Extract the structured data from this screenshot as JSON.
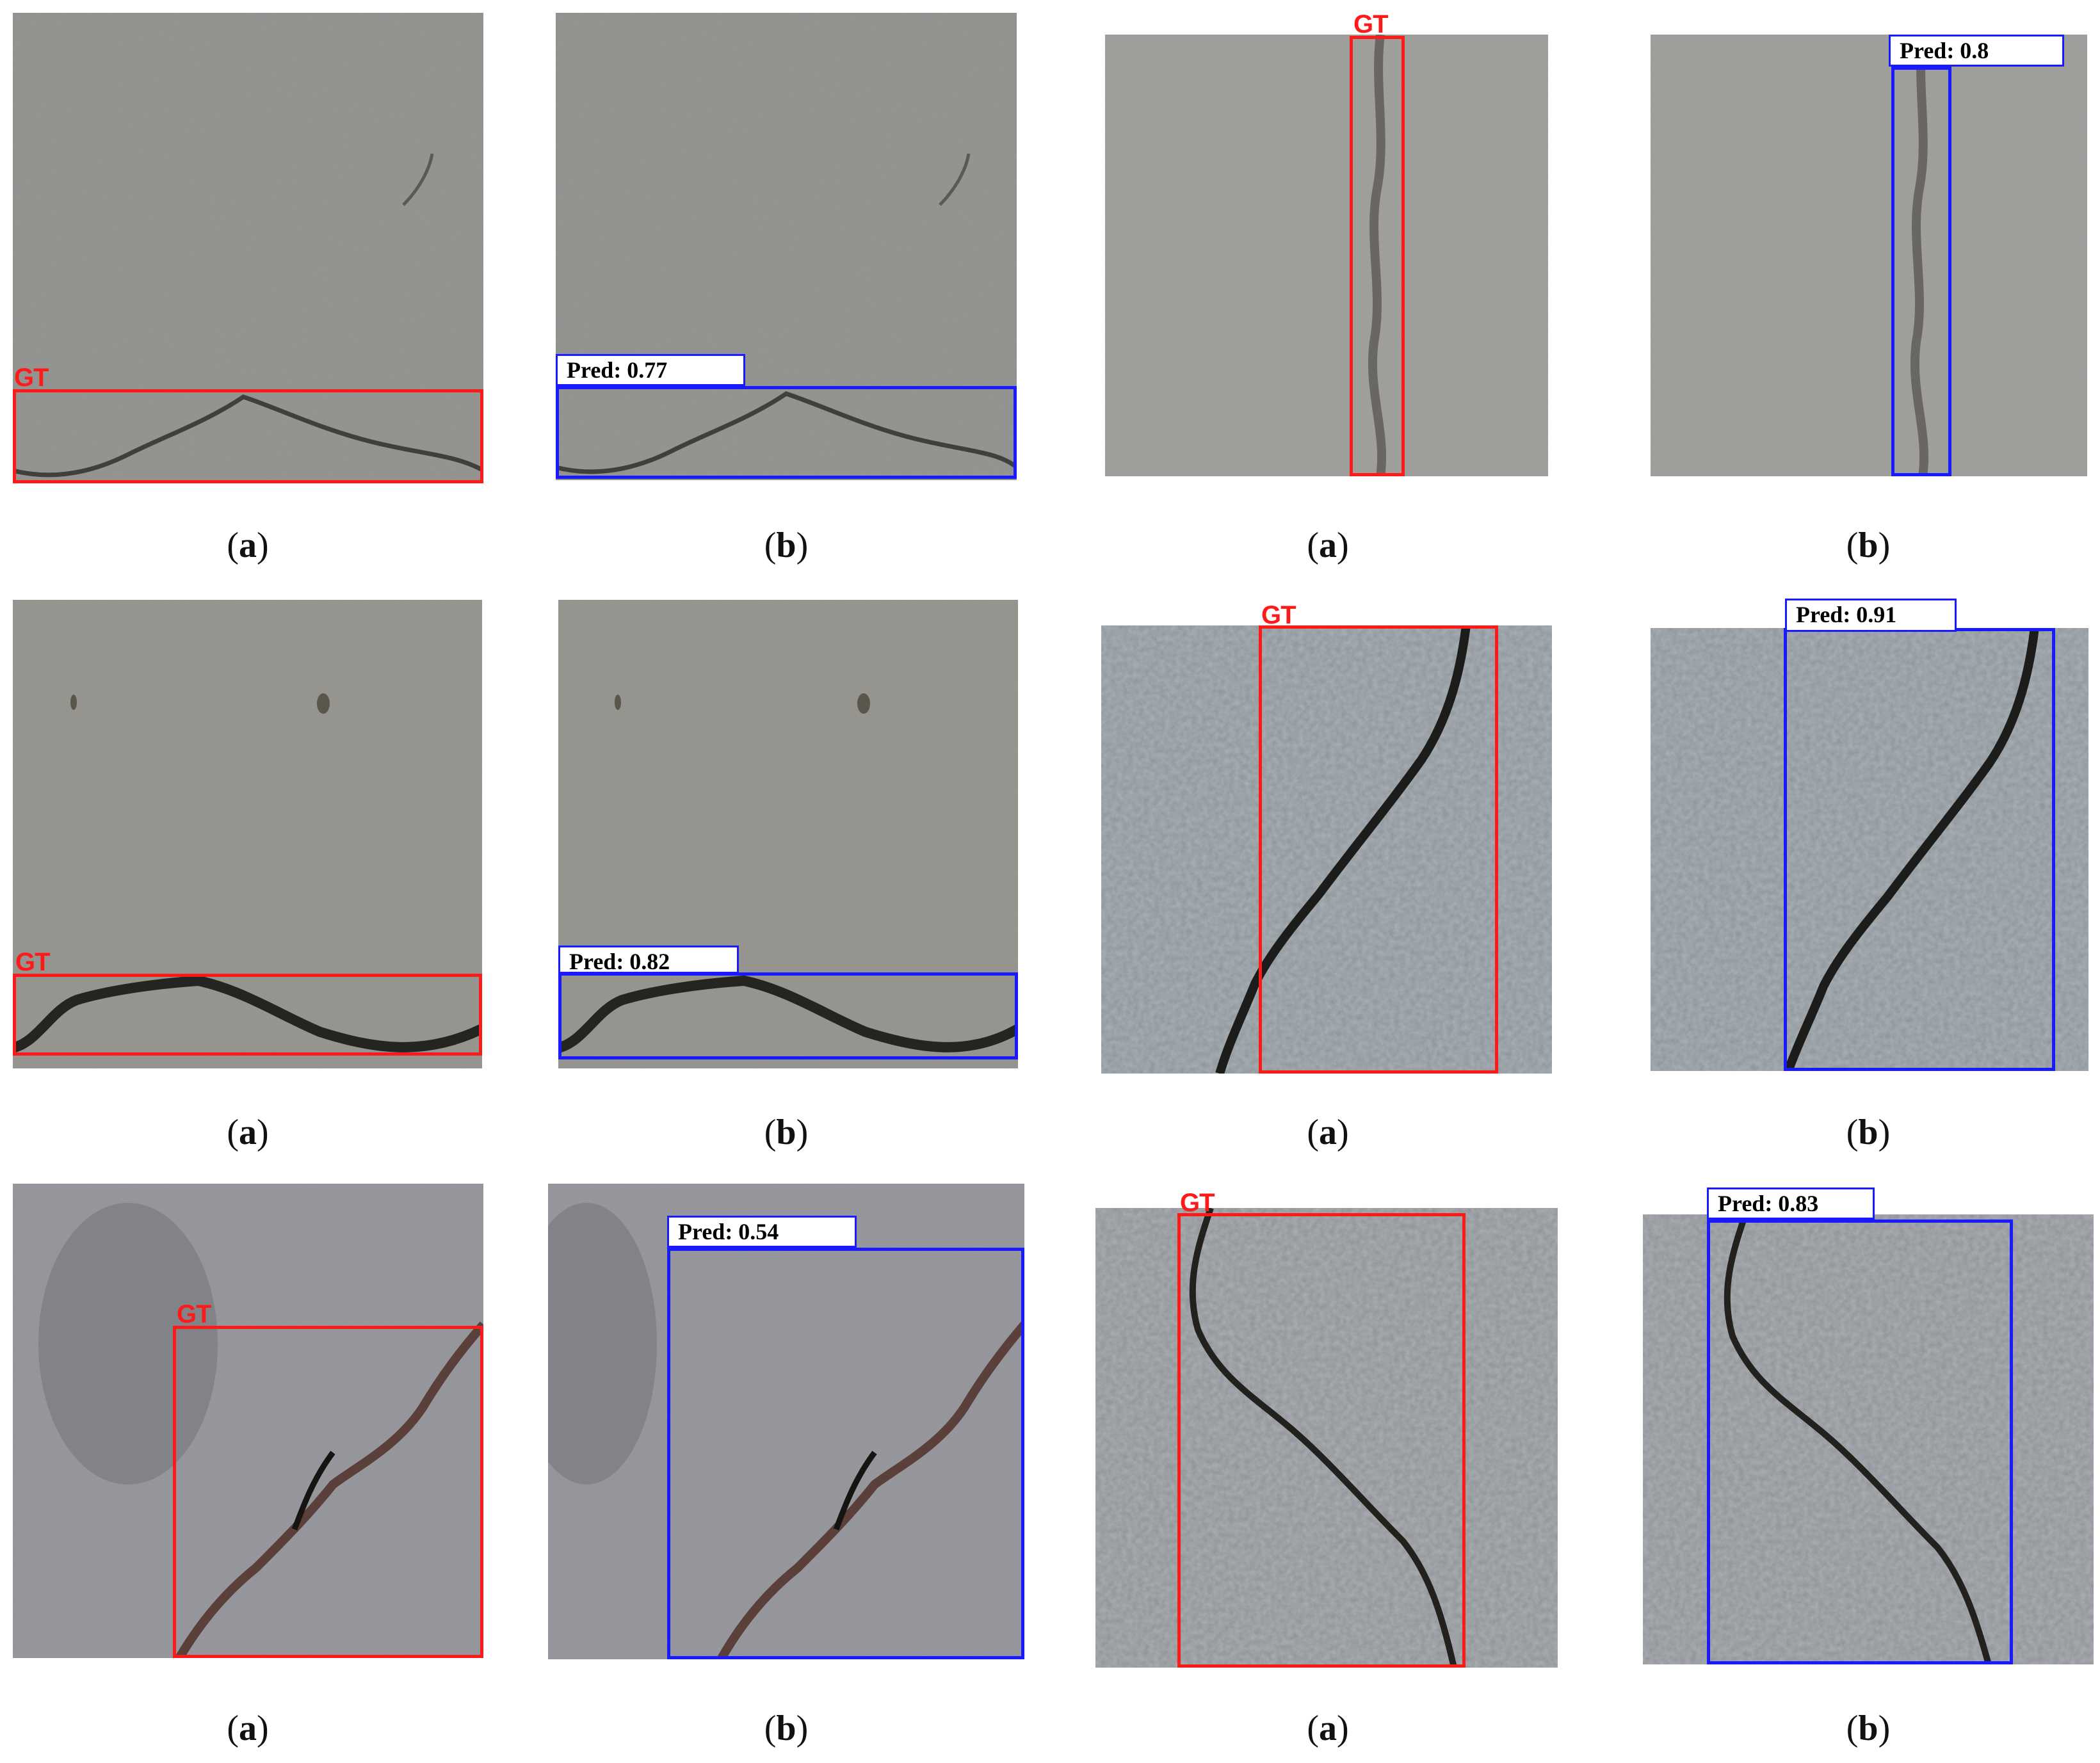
{
  "captions": {
    "a": "a",
    "b": "b"
  },
  "labels": {
    "gt": "GT"
  },
  "predictions": {
    "r1c2": "Pred: 0.77",
    "r1c4": "Pred: 0.8",
    "r2c2": "Pred: 0.82",
    "r2c4": "Pred: 0.91",
    "r3c2": "Pred: 0.54",
    "r3c4": "Pred: 0.83"
  },
  "colors": {
    "ground_truth_box": "#ff1a1a",
    "prediction_box": "#1a1aff"
  }
}
